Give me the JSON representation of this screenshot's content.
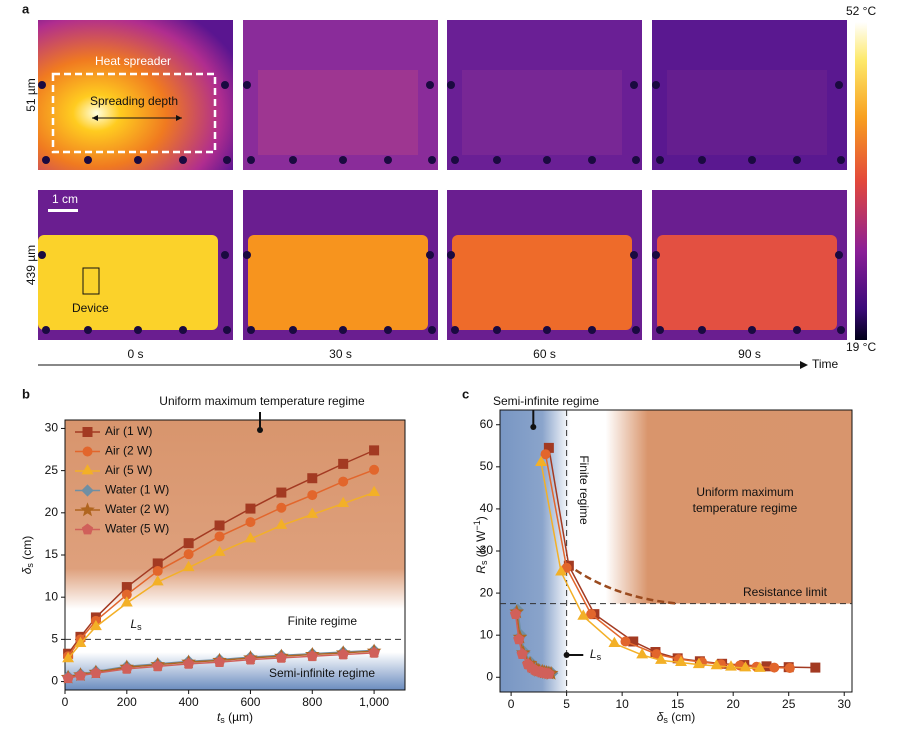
{
  "panel_a": {
    "label": "a",
    "rows": [
      "51 µm",
      "439 µm"
    ],
    "times": [
      "0 s",
      "30 s",
      "60 s",
      "90 s"
    ],
    "time_label": "Time",
    "colorbar_max": "52 °C",
    "colorbar_min": "19 °C",
    "heat_spreader": "Heat spreader",
    "spreading_depth": "Spreading depth",
    "scale_bar": "1 cm",
    "device": "Device"
  },
  "chart_data": [
    {
      "type": "line",
      "panel": "b",
      "xlabel": {
        "main": "t",
        "sub": "s",
        "unit": " (µm)"
      },
      "ylabel": {
        "main": "δ",
        "sub": "s",
        "unit": " (cm)"
      },
      "xlim": [
        0,
        1100
      ],
      "ylim": [
        -1,
        31
      ],
      "xticks": [
        0,
        200,
        400,
        600,
        800,
        {
          "value": 1000,
          "label": "1,000"
        }
      ],
      "yticks": [
        0,
        5,
        10,
        15,
        20,
        25,
        30
      ],
      "x": [
        10,
        50,
        100,
        200,
        300,
        400,
        500,
        600,
        700,
        800,
        900,
        1000
      ],
      "series": [
        {
          "name": "Air (1 W)",
          "color": "#a33a22",
          "marker": "square",
          "values": [
            3.3,
            5.3,
            7.6,
            11.2,
            14.0,
            16.4,
            18.5,
            20.5,
            22.4,
            24.1,
            25.8,
            27.4
          ]
        },
        {
          "name": "Air (2 W)",
          "color": "#e2662c",
          "marker": "circle",
          "values": [
            3.0,
            5.0,
            7.2,
            10.3,
            13.1,
            15.1,
            17.2,
            18.9,
            20.6,
            22.1,
            23.7,
            25.1
          ]
        },
        {
          "name": "Air (5 W)",
          "color": "#f3b027",
          "marker": "triangle",
          "values": [
            2.7,
            4.5,
            6.5,
            9.3,
            11.8,
            13.5,
            15.3,
            16.9,
            18.5,
            19.8,
            21.1,
            22.4
          ]
        },
        {
          "name": "Water (1 W)",
          "color": "#6f8fa3",
          "marker": "diamond",
          "values": [
            0.6,
            0.9,
            1.2,
            1.8,
            2.1,
            2.4,
            2.6,
            2.9,
            3.1,
            3.3,
            3.5,
            3.7
          ]
        },
        {
          "name": "Water (2 W)",
          "color": "#b0651f",
          "marker": "star",
          "values": [
            0.5,
            0.8,
            1.1,
            1.7,
            2.0,
            2.3,
            2.5,
            2.8,
            3.0,
            3.2,
            3.4,
            3.6
          ]
        },
        {
          "name": "Water (5 W)",
          "color": "#d0605a",
          "marker": "pentagon",
          "values": [
            0.4,
            0.7,
            1.0,
            1.5,
            1.8,
            2.1,
            2.3,
            2.6,
            2.8,
            3.0,
            3.2,
            3.4
          ]
        }
      ],
      "hline": 5,
      "hline_label": {
        "main": "L",
        "sub": "s"
      },
      "annotations": [
        "Uniform maximum temperature regime",
        "Finite regime",
        "Semi-infinite regime"
      ]
    },
    {
      "type": "scatter",
      "panel": "c",
      "xlabel": {
        "main": "δ",
        "sub": "s",
        "unit": " (cm)"
      },
      "ylabel": {
        "main": "R",
        "sub": "s",
        "unit": " (K W",
        "sup": "−1",
        "end": ")"
      },
      "xlim": [
        -1,
        30.7
      ],
      "ylim": [
        -3.5,
        63.5
      ],
      "xticks": [
        0,
        5,
        10,
        15,
        20,
        25,
        30
      ],
      "yticks": [
        0,
        10,
        20,
        30,
        40,
        50,
        60
      ],
      "series": [
        {
          "name": "Air (1 W)",
          "color": "#a33a22",
          "marker": "square",
          "x": [
            3.4,
            5.2,
            7.5,
            11,
            13,
            15,
            17,
            19,
            21,
            23,
            25,
            27.4
          ],
          "values": [
            54.5,
            26.5,
            15,
            8.5,
            6,
            4.5,
            3.8,
            3.2,
            2.9,
            2.6,
            2.4,
            2.3
          ]
        },
        {
          "name": "Air (2 W)",
          "color": "#e2662c",
          "marker": "circle",
          "x": [
            3.1,
            5,
            7.2,
            10.3,
            13.1,
            15.1,
            17.2,
            18.9,
            20.6,
            22.1,
            23.7,
            25.1
          ],
          "values": [
            53,
            26,
            15,
            8.5,
            5.5,
            4.3,
            3.6,
            3.1,
            2.8,
            2.5,
            2.3,
            2.2
          ]
        },
        {
          "name": "Air (5 W)",
          "color": "#f3b027",
          "marker": "triangle",
          "x": [
            2.7,
            4.5,
            6.5,
            9.3,
            11.8,
            13.5,
            15.3,
            16.9,
            18.5,
            19.8,
            21.1,
            22.4
          ],
          "values": [
            51,
            25,
            14.5,
            8,
            5.3,
            4,
            3.5,
            3,
            2.7,
            2.4,
            2.2,
            2.1
          ]
        },
        {
          "name": "Water (1 W)",
          "color": "#6f8fa3",
          "marker": "diamond",
          "x": [
            0.6,
            0.9,
            1.2,
            1.8,
            2.1,
            2.4,
            2.6,
            2.9,
            3.1,
            3.3,
            3.5,
            3.7
          ],
          "values": [
            16,
            10,
            6,
            3.5,
            2.5,
            2,
            1.7,
            1.5,
            1.3,
            1.2,
            1.1,
            1.0
          ]
        },
        {
          "name": "Water (2 W)",
          "color": "#b0651f",
          "marker": "star",
          "x": [
            0.5,
            0.8,
            1.1,
            1.7,
            2.0,
            2.3,
            2.5,
            2.8,
            3.0,
            3.2,
            3.4,
            3.6
          ],
          "values": [
            15.5,
            9.5,
            5.8,
            3.3,
            2.4,
            1.9,
            1.6,
            1.4,
            1.2,
            1.1,
            1.0,
            0.9
          ]
        },
        {
          "name": "Water (5 W)",
          "color": "#d0605a",
          "marker": "pentagon",
          "x": [
            0.4,
            0.7,
            1.0,
            1.5,
            1.8,
            2.1,
            2.3,
            2.6,
            2.8,
            3.0,
            3.2,
            3.4
          ],
          "values": [
            15,
            9,
            5.5,
            3.1,
            2.3,
            1.8,
            1.5,
            1.3,
            1.1,
            1.0,
            0.9,
            0.8
          ]
        }
      ],
      "hline": 17.5,
      "hline_label": "Resistance limit",
      "vline": 5,
      "vline_label": {
        "main": "L",
        "sub": "s"
      },
      "annotations": [
        "Semi-infinite regime",
        "Finite regime",
        "Uniform maximum",
        "temperature regime"
      ]
    }
  ]
}
